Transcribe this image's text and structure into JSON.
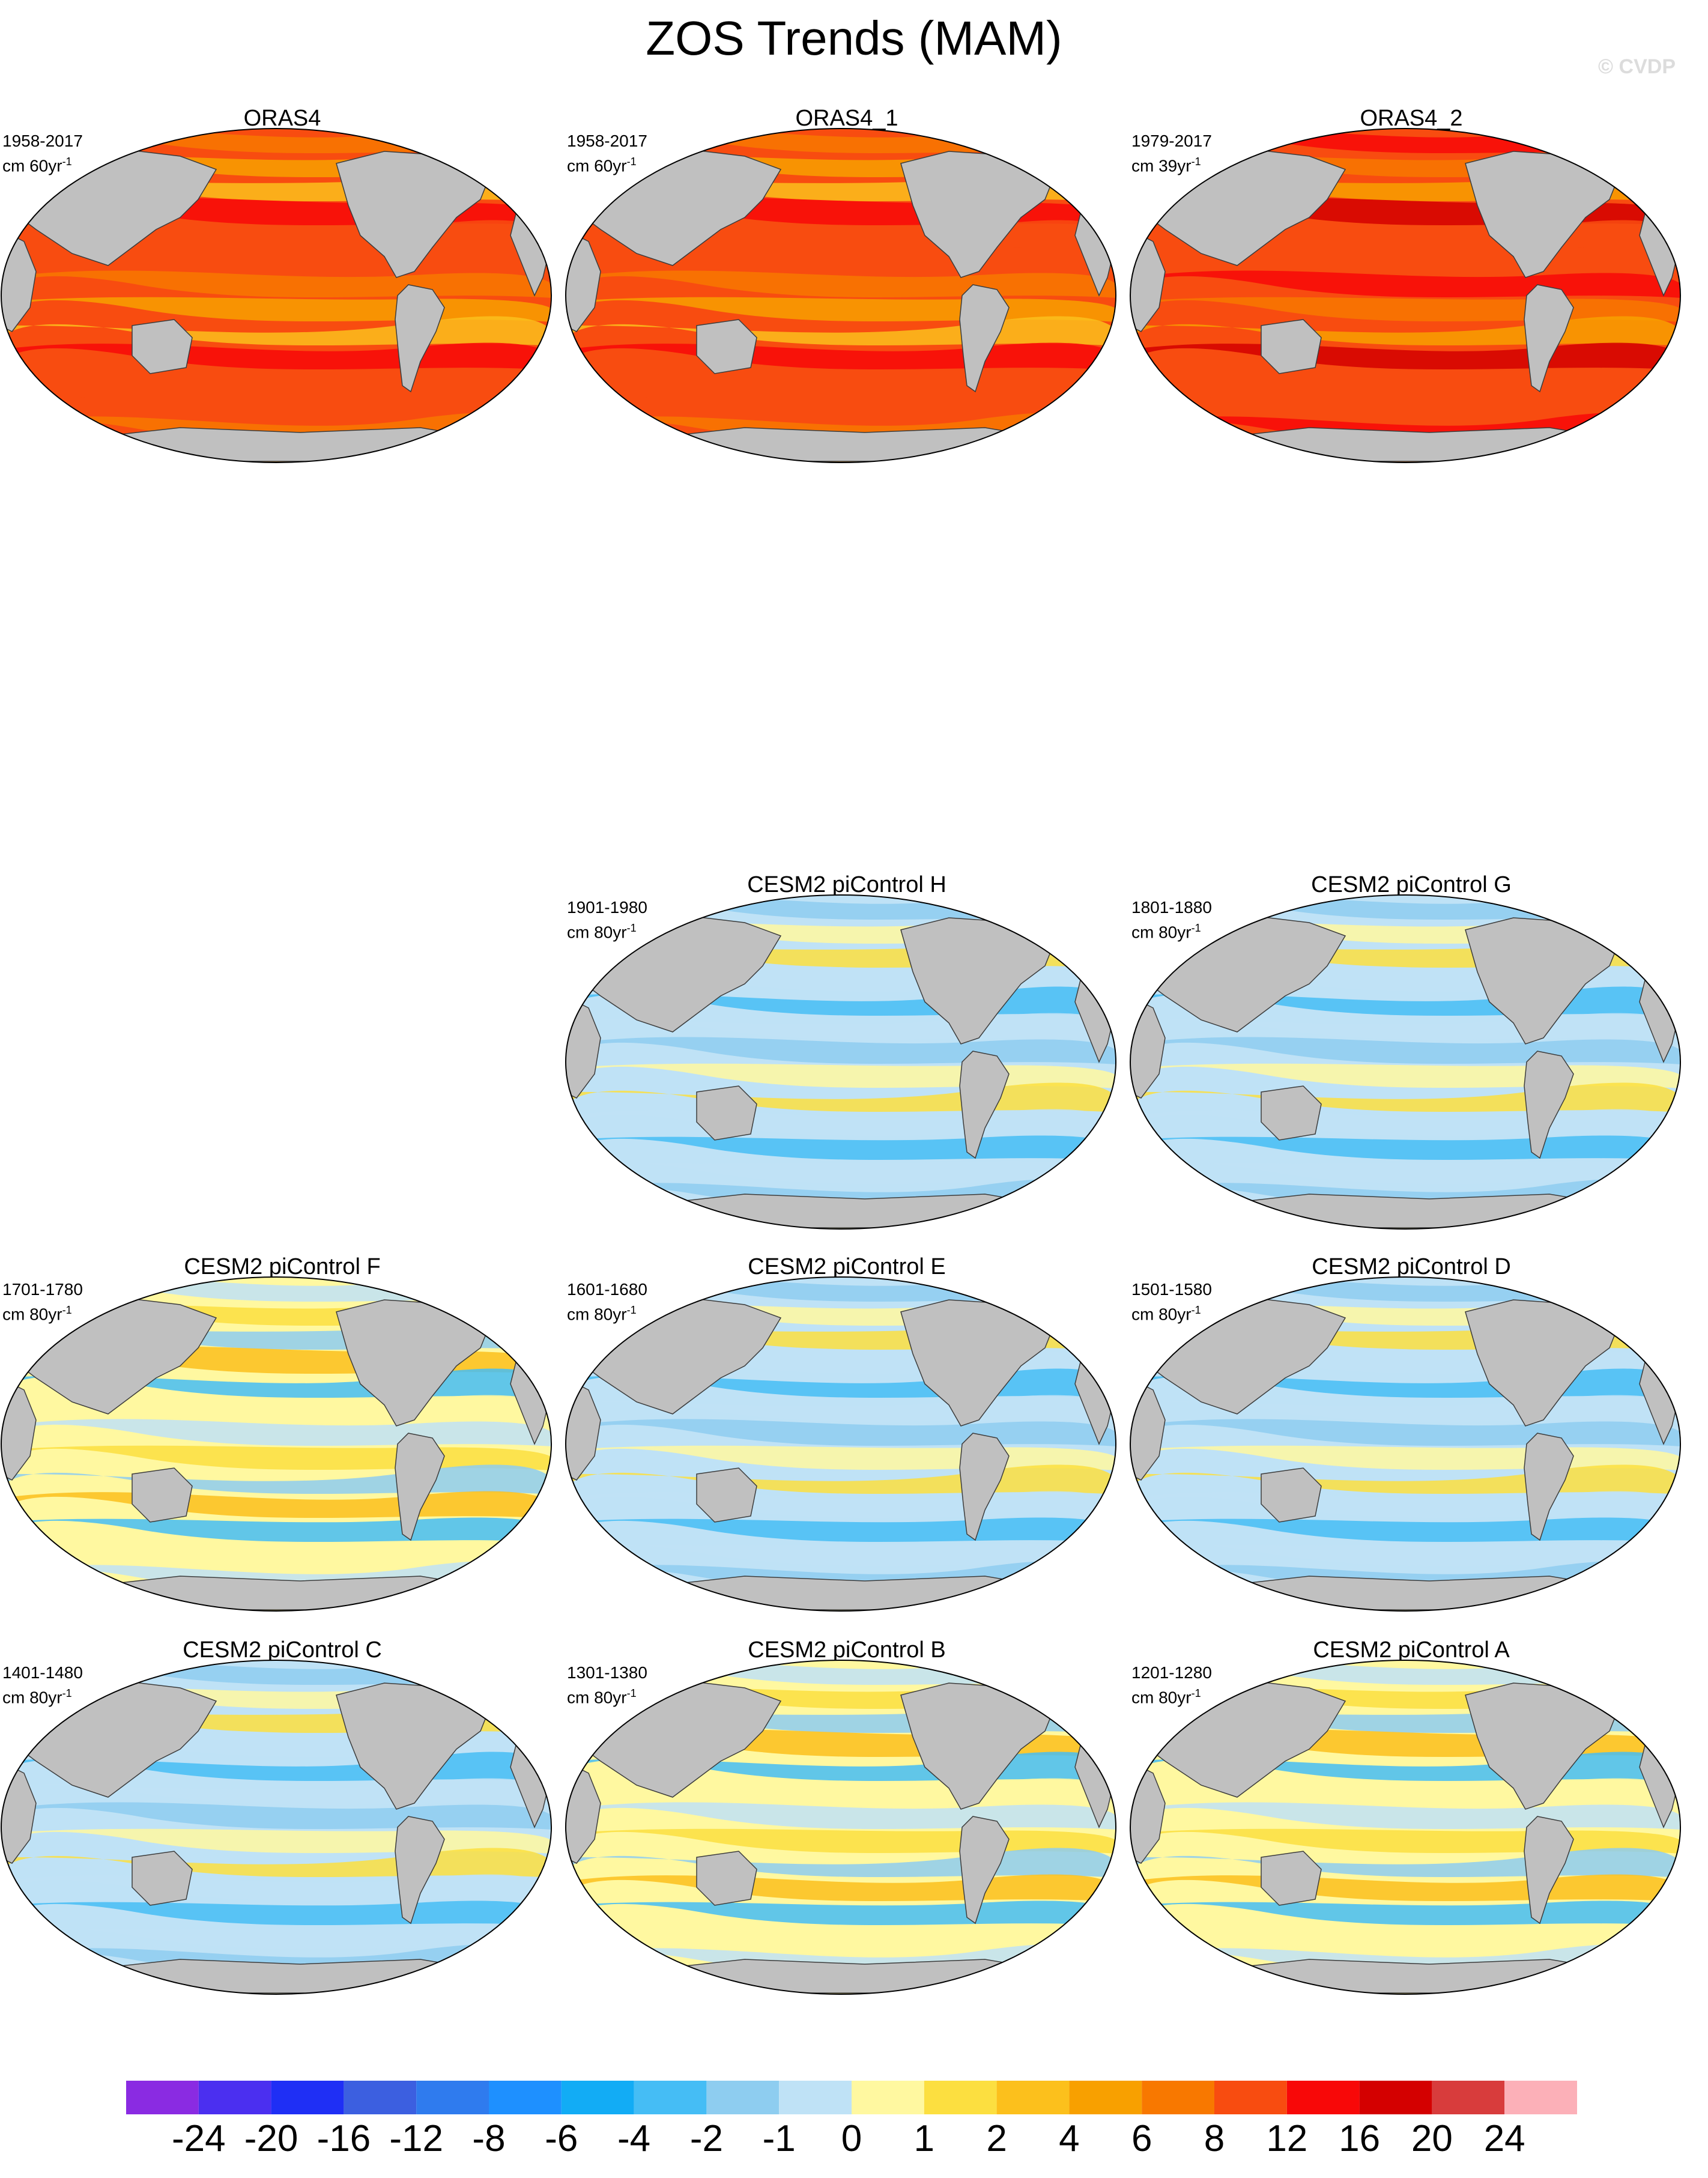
{
  "title": "ZOS Trends (MAM)",
  "watermark": "© CVDP",
  "panels": [
    {
      "title": "ORAS4",
      "period": "1958-2017",
      "units_base": "cm 60yr",
      "units_exp": "-1",
      "style": "warm"
    },
    {
      "title": "ORAS4_1",
      "period": "1958-2017",
      "units_base": "cm 60yr",
      "units_exp": "-1",
      "style": "warm"
    },
    {
      "title": "ORAS4_2",
      "period": "1979-2017",
      "units_base": "cm 39yr",
      "units_exp": "-1",
      "style": "warm2"
    },
    {
      "title": "CESM2 piControl H",
      "period": "1901-1980",
      "units_base": "cm 80yr",
      "units_exp": "-1",
      "style": "cool"
    },
    {
      "title": "CESM2 piControl G",
      "period": "1801-1880",
      "units_base": "cm 80yr",
      "units_exp": "-1",
      "style": "cool"
    },
    {
      "title": "CESM2 piControl F",
      "period": "1701-1780",
      "units_base": "cm 80yr",
      "units_exp": "-1",
      "style": "mixed"
    },
    {
      "title": "CESM2 piControl E",
      "period": "1601-1680",
      "units_base": "cm 80yr",
      "units_exp": "-1",
      "style": "cool"
    },
    {
      "title": "CESM2 piControl D",
      "period": "1501-1580",
      "units_base": "cm 80yr",
      "units_exp": "-1",
      "style": "cool"
    },
    {
      "title": "CESM2 piControl C",
      "period": "1401-1480",
      "units_base": "cm 80yr",
      "units_exp": "-1",
      "style": "cool"
    },
    {
      "title": "CESM2 piControl B",
      "period": "1301-1380",
      "units_base": "cm 80yr",
      "units_exp": "-1",
      "style": "mixed"
    },
    {
      "title": "CESM2 piControl A",
      "period": "1201-1280",
      "units_base": "cm 80yr",
      "units_exp": "-1",
      "style": "mixed"
    }
  ],
  "colorbar": {
    "colors": [
      "#8a2be2",
      "#4b2ff0",
      "#1f2ff5",
      "#3c5fe0",
      "#2f7bee",
      "#1e90ff",
      "#12acf5",
      "#45bdf5",
      "#8ecdf0",
      "#bfe2f6",
      "#fff8a0",
      "#fcdf40",
      "#fcc01c",
      "#f8a000",
      "#f87800",
      "#f84c10",
      "#f80808",
      "#d40000",
      "#d83c3c",
      "#fcb0b8"
    ],
    "labels": [
      "-24",
      "-20",
      "-16",
      "-12",
      "-8",
      "-6",
      "-4",
      "-2",
      "-1",
      "0",
      "1",
      "2",
      "4",
      "6",
      "8",
      "12",
      "16",
      "20",
      "24"
    ]
  },
  "colors": {
    "land": "#c0c0c0",
    "coast": "#3c3c3c"
  }
}
